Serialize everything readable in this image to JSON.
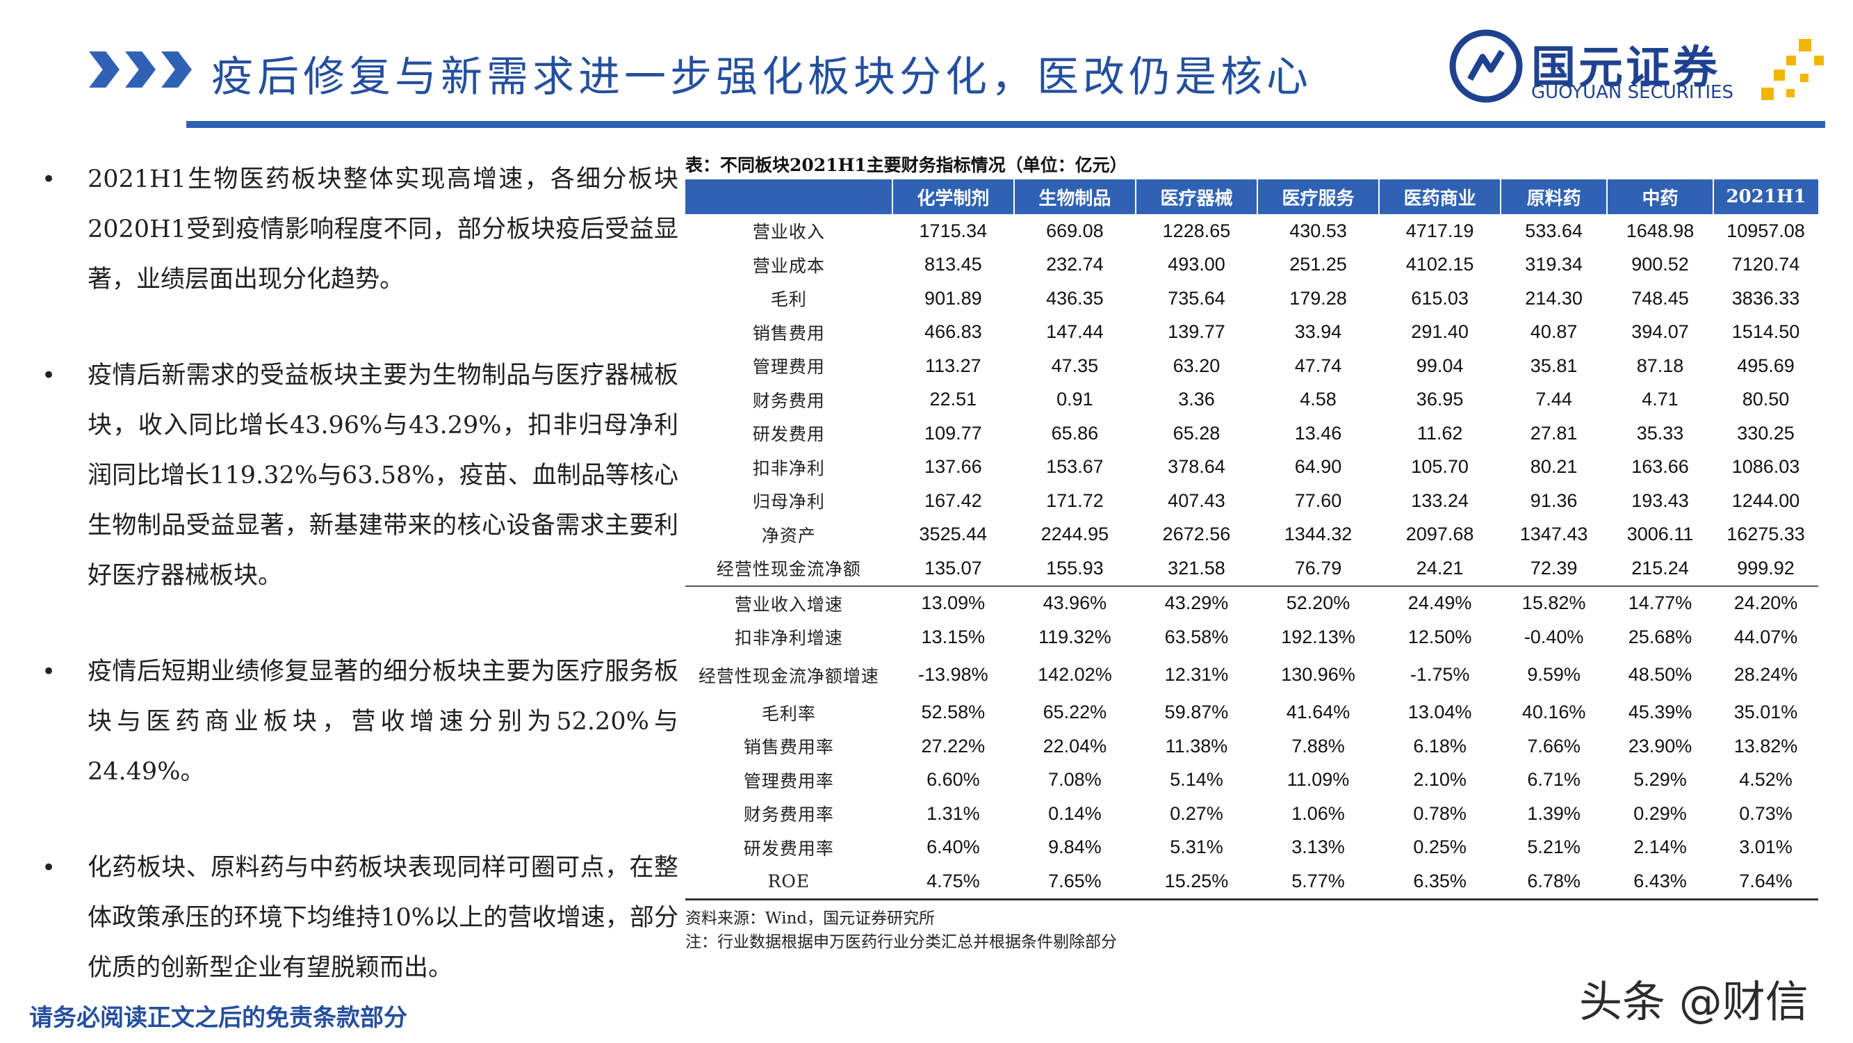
{
  "header": {
    "title": "疫后修复与新需求进一步强化板块分化，医改仍是核心",
    "accent_color": "#2f62b4"
  },
  "logo": {
    "name_cn": "国元证券",
    "name_en": "GUOYUAN SECURITIES"
  },
  "bullets": [
    {
      "text": "2021H1生物医药板块整体实现高增速，各细分板块2020H1受到疫情影响程度不同，部分板块疫后受益显著，业绩层面出现分化趋势。"
    },
    {
      "text": "疫情后新需求的受益板块主要为生物制品与医疗器械板块，收入同比增长43.96%与43.29%，扣非归母净利润同比增长119.32%与63.58%，疫苗、血制品等核心生物制品受益显著，新基建带来的核心设备需求主要利好医疗器械板块。"
    },
    {
      "text": "疫情后短期业绩修复显著的细分板块主要为医疗服务板块与医药商业板块，营收增速分别为52.20%与24.49%。"
    },
    {
      "text": "化药板块、原料药与中药板块表现同样可圈可点，在整体政策承压的环境下均维持10%以上的营收增速，部分优质的创新型企业有望脱颖而出。"
    }
  ],
  "table": {
    "caption": "表：不同板块2021H1主要财务指标情况（单位：亿元）",
    "columns": [
      "",
      "化学制剂",
      "生物制品",
      "医疗器械",
      "医疗服务",
      "医药商业",
      "原料药",
      "中药",
      "2021H1"
    ],
    "rows": [
      {
        "label": "营业收入",
        "values": [
          "1715.34",
          "669.08",
          "1228.65",
          "430.53",
          "4717.19",
          "533.64",
          "1648.98",
          "10957.08"
        ]
      },
      {
        "label": "营业成本",
        "values": [
          "813.45",
          "232.74",
          "493.00",
          "251.25",
          "4102.15",
          "319.34",
          "900.52",
          "7120.74"
        ]
      },
      {
        "label": "毛利",
        "values": [
          "901.89",
          "436.35",
          "735.64",
          "179.28",
          "615.03",
          "214.30",
          "748.45",
          "3836.33"
        ]
      },
      {
        "label": "销售费用",
        "values": [
          "466.83",
          "147.44",
          "139.77",
          "33.94",
          "291.40",
          "40.87",
          "394.07",
          "1514.50"
        ]
      },
      {
        "label": "管理费用",
        "values": [
          "113.27",
          "47.35",
          "63.20",
          "47.74",
          "99.04",
          "35.81",
          "87.18",
          "495.69"
        ]
      },
      {
        "label": "财务费用",
        "values": [
          "22.51",
          "0.91",
          "3.36",
          "4.58",
          "36.95",
          "7.44",
          "4.71",
          "80.50"
        ]
      },
      {
        "label": "研发费用",
        "values": [
          "109.77",
          "65.86",
          "65.28",
          "13.46",
          "11.62",
          "27.81",
          "35.33",
          "330.25"
        ]
      },
      {
        "label": "扣非净利",
        "values": [
          "137.66",
          "153.67",
          "378.64",
          "64.90",
          "105.70",
          "80.21",
          "163.66",
          "1086.03"
        ]
      },
      {
        "label": "归母净利",
        "values": [
          "167.42",
          "171.72",
          "407.43",
          "77.60",
          "133.24",
          "91.36",
          "193.43",
          "1244.00"
        ]
      },
      {
        "label": "净资产",
        "values": [
          "3525.44",
          "2244.95",
          "2672.56",
          "1344.32",
          "2097.68",
          "1347.43",
          "3006.11",
          "16275.33"
        ]
      },
      {
        "label": "经营性现金流净额",
        "values": [
          "135.07",
          "155.93",
          "321.58",
          "76.79",
          "24.21",
          "72.39",
          "215.24",
          "999.92"
        ]
      },
      {
        "label": "营业收入增速",
        "values": [
          "13.09%",
          "43.96%",
          "43.29%",
          "52.20%",
          "24.49%",
          "15.82%",
          "14.77%",
          "24.20%"
        ]
      },
      {
        "label": "扣非净利增速",
        "values": [
          "13.15%",
          "119.32%",
          "63.58%",
          "192.13%",
          "12.50%",
          "-0.40%",
          "25.68%",
          "44.07%"
        ]
      },
      {
        "label": "经营性现金流净额增速",
        "values": [
          "-13.98%",
          "142.02%",
          "12.31%",
          "130.96%",
          "-1.75%",
          "9.59%",
          "48.50%",
          "28.24%"
        ]
      },
      {
        "label": "毛利率",
        "values": [
          "52.58%",
          "65.22%",
          "59.87%",
          "41.64%",
          "13.04%",
          "40.16%",
          "45.39%",
          "35.01%"
        ]
      },
      {
        "label": "销售费用率",
        "values": [
          "27.22%",
          "22.04%",
          "11.38%",
          "7.88%",
          "6.18%",
          "7.66%",
          "23.90%",
          "13.82%"
        ]
      },
      {
        "label": "管理费用率",
        "values": [
          "6.60%",
          "7.08%",
          "5.14%",
          "11.09%",
          "2.10%",
          "6.71%",
          "5.29%",
          "4.52%"
        ]
      },
      {
        "label": "财务费用率",
        "values": [
          "1.31%",
          "0.14%",
          "0.27%",
          "1.06%",
          "0.78%",
          "1.39%",
          "0.29%",
          "0.73%"
        ]
      },
      {
        "label": "研发费用率",
        "values": [
          "6.40%",
          "9.84%",
          "5.31%",
          "3.13%",
          "0.25%",
          "5.21%",
          "2.14%",
          "3.01%"
        ]
      },
      {
        "label": "ROE",
        "values": [
          "4.75%",
          "7.65%",
          "15.25%",
          "5.77%",
          "6.35%",
          "6.78%",
          "6.43%",
          "7.64%"
        ]
      }
    ],
    "source_line": "资料来源：Wind，国元证券研究所",
    "note_line": "注：行业数据根据申万医药行业分类汇总并根据条件剔除部分"
  },
  "footer": {
    "disclaimer": "请务必阅读正文之后的免责条款部分",
    "watermark": "头条 @财信"
  }
}
